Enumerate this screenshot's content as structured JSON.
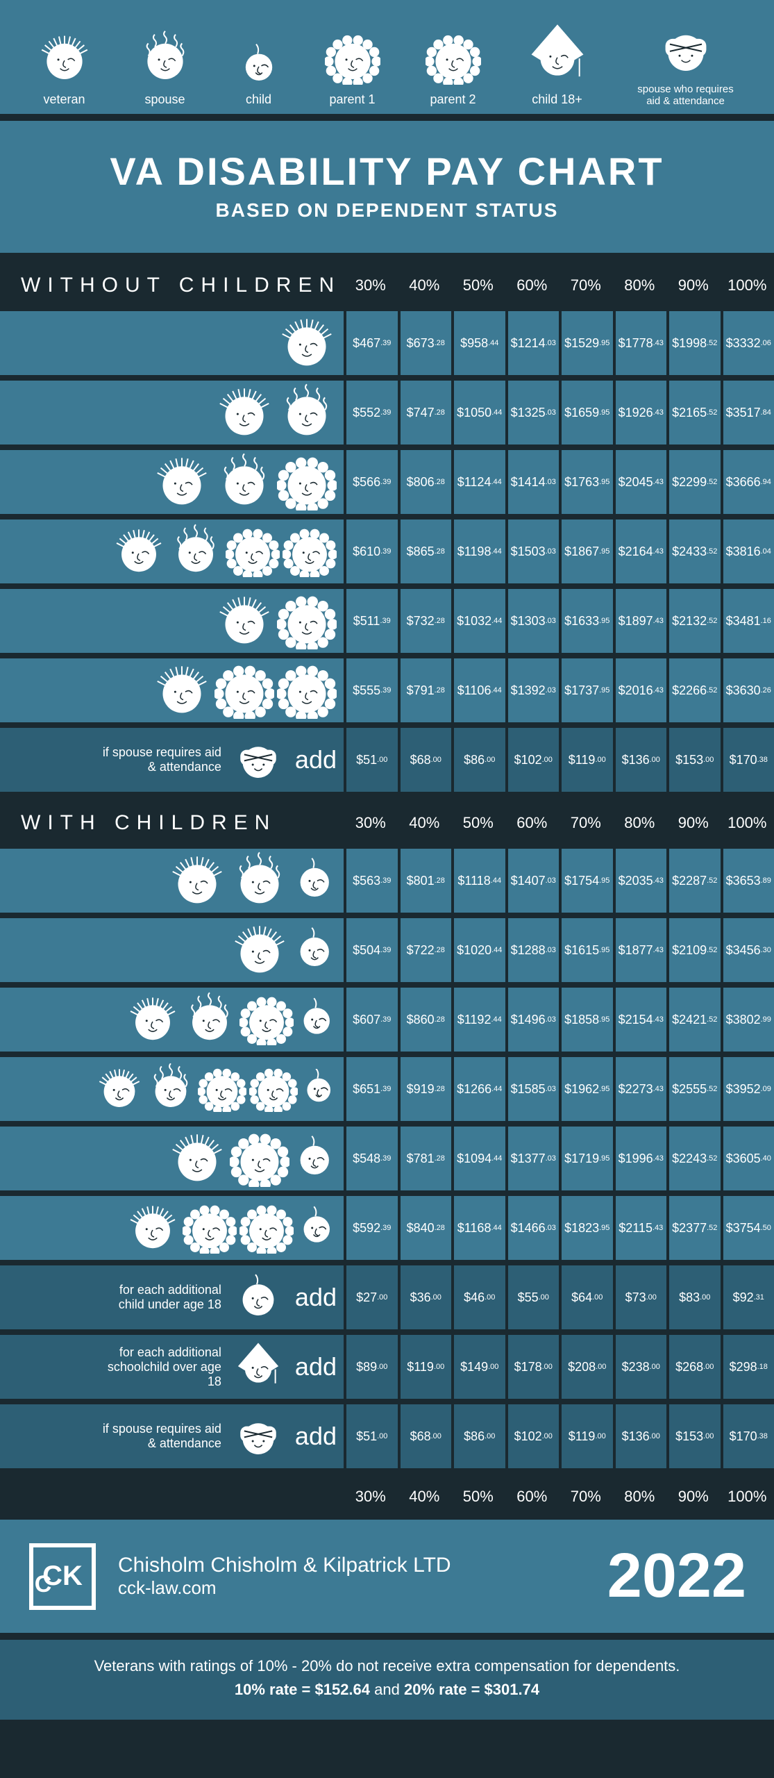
{
  "legend": [
    {
      "key": "veteran",
      "label": "veteran"
    },
    {
      "key": "spouse",
      "label": "spouse"
    },
    {
      "key": "child",
      "label": "child"
    },
    {
      "key": "parent1",
      "label": "parent 1"
    },
    {
      "key": "parent2",
      "label": "parent 2"
    },
    {
      "key": "child18",
      "label": "child 18+"
    },
    {
      "key": "spouse_aid",
      "label": "spouse who requires aid & attendance"
    }
  ],
  "title": "VA DISABILITY PAY CHART",
  "subtitle": "BASED ON DEPENDENT STATUS",
  "percent_headers": [
    "30%",
    "40%",
    "50%",
    "60%",
    "70%",
    "80%",
    "90%",
    "100%"
  ],
  "colors": {
    "page_bg": "#1a2930",
    "row_bg": "#3d7a94",
    "add_bg": "#2d5f75",
    "text": "#ffffff"
  },
  "sections": [
    {
      "id": "without",
      "label": "WITHOUT CHILDREN",
      "rows": [
        {
          "icons": [
            "veteran"
          ],
          "vals": [
            [
              "$467",
              ".39"
            ],
            [
              "$673",
              ".28"
            ],
            [
              "$958",
              ".44"
            ],
            [
              "$1214",
              ".03"
            ],
            [
              "$1529",
              ".95"
            ],
            [
              "$1778",
              ".43"
            ],
            [
              "$1998",
              ".52"
            ],
            [
              "$3332",
              ".06"
            ]
          ]
        },
        {
          "icons": [
            "veteran",
            "spouse"
          ],
          "vals": [
            [
              "$552",
              ".39"
            ],
            [
              "$747",
              ".28"
            ],
            [
              "$1050",
              ".44"
            ],
            [
              "$1325",
              ".03"
            ],
            [
              "$1659",
              ".95"
            ],
            [
              "$1926",
              ".43"
            ],
            [
              "$2165",
              ".52"
            ],
            [
              "$3517",
              ".84"
            ]
          ]
        },
        {
          "icons": [
            "veteran",
            "spouse",
            "parent1"
          ],
          "vals": [
            [
              "$566",
              ".39"
            ],
            [
              "$806",
              ".28"
            ],
            [
              "$1124",
              ".44"
            ],
            [
              "$1414",
              ".03"
            ],
            [
              "$1763",
              ".95"
            ],
            [
              "$2045",
              ".43"
            ],
            [
              "$2299",
              ".52"
            ],
            [
              "$3666",
              ".94"
            ]
          ]
        },
        {
          "icons": [
            "veteran",
            "spouse",
            "parent1",
            "parent2"
          ],
          "vals": [
            [
              "$610",
              ".39"
            ],
            [
              "$865",
              ".28"
            ],
            [
              "$1198",
              ".44"
            ],
            [
              "$1503",
              ".03"
            ],
            [
              "$1867",
              ".95"
            ],
            [
              "$2164",
              ".43"
            ],
            [
              "$2433",
              ".52"
            ],
            [
              "$3816",
              ".04"
            ]
          ]
        },
        {
          "icons": [
            "veteran",
            "parent1"
          ],
          "vals": [
            [
              "$511",
              ".39"
            ],
            [
              "$732",
              ".28"
            ],
            [
              "$1032",
              ".44"
            ],
            [
              "$1303",
              ".03"
            ],
            [
              "$1633",
              ".95"
            ],
            [
              "$1897",
              ".43"
            ],
            [
              "$2132",
              ".52"
            ],
            [
              "$3481",
              ".16"
            ]
          ]
        },
        {
          "icons": [
            "veteran",
            "parent1",
            "parent2"
          ],
          "vals": [
            [
              "$555",
              ".39"
            ],
            [
              "$791",
              ".28"
            ],
            [
              "$1106",
              ".44"
            ],
            [
              "$1392",
              ".03"
            ],
            [
              "$1737",
              ".95"
            ],
            [
              "$2016",
              ".43"
            ],
            [
              "$2266",
              ".52"
            ],
            [
              "$3630",
              ".26"
            ]
          ]
        }
      ],
      "add_rows": [
        {
          "label": "if spouse requires aid & attendance",
          "icon": "spouse_aid",
          "word": "add",
          "vals": [
            [
              "$51",
              ".00"
            ],
            [
              "$68",
              ".00"
            ],
            [
              "$86",
              ".00"
            ],
            [
              "$102",
              ".00"
            ],
            [
              "$119",
              ".00"
            ],
            [
              "$136",
              ".00"
            ],
            [
              "$153",
              ".00"
            ],
            [
              "$170",
              ".38"
            ]
          ]
        }
      ]
    },
    {
      "id": "with",
      "label": "WITH CHILDREN",
      "rows": [
        {
          "icons": [
            "veteran",
            "spouse",
            "child"
          ],
          "vals": [
            [
              "$563",
              ".39"
            ],
            [
              "$801",
              ".28"
            ],
            [
              "$1118",
              ".44"
            ],
            [
              "$1407",
              ".03"
            ],
            [
              "$1754",
              ".95"
            ],
            [
              "$2035",
              ".43"
            ],
            [
              "$2287",
              ".52"
            ],
            [
              "$3653",
              ".89"
            ]
          ]
        },
        {
          "icons": [
            "veteran",
            "child"
          ],
          "vals": [
            [
              "$504",
              ".39"
            ],
            [
              "$722",
              ".28"
            ],
            [
              "$1020",
              ".44"
            ],
            [
              "$1288",
              ".03"
            ],
            [
              "$1615",
              ".95"
            ],
            [
              "$1877",
              ".43"
            ],
            [
              "$2109",
              ".52"
            ],
            [
              "$3456",
              ".30"
            ]
          ]
        },
        {
          "icons": [
            "veteran",
            "spouse",
            "parent1",
            "child"
          ],
          "vals": [
            [
              "$607",
              ".39"
            ],
            [
              "$860",
              ".28"
            ],
            [
              "$1192",
              ".44"
            ],
            [
              "$1496",
              ".03"
            ],
            [
              "$1858",
              ".95"
            ],
            [
              "$2154",
              ".43"
            ],
            [
              "$2421",
              ".52"
            ],
            [
              "$3802",
              ".99"
            ]
          ]
        },
        {
          "icons": [
            "veteran",
            "spouse",
            "parent1",
            "parent2",
            "child"
          ],
          "vals": [
            [
              "$651",
              ".39"
            ],
            [
              "$919",
              ".28"
            ],
            [
              "$1266",
              ".44"
            ],
            [
              "$1585",
              ".03"
            ],
            [
              "$1962",
              ".95"
            ],
            [
              "$2273",
              ".43"
            ],
            [
              "$2555",
              ".52"
            ],
            [
              "$3952",
              ".09"
            ]
          ]
        },
        {
          "icons": [
            "veteran",
            "parent1",
            "child"
          ],
          "vals": [
            [
              "$548",
              ".39"
            ],
            [
              "$781",
              ".28"
            ],
            [
              "$1094",
              ".44"
            ],
            [
              "$1377",
              ".03"
            ],
            [
              "$1719",
              ".95"
            ],
            [
              "$1996",
              ".43"
            ],
            [
              "$2243",
              ".52"
            ],
            [
              "$3605",
              ".40"
            ]
          ]
        },
        {
          "icons": [
            "veteran",
            "parent1",
            "parent2",
            "child"
          ],
          "vals": [
            [
              "$592",
              ".39"
            ],
            [
              "$840",
              ".28"
            ],
            [
              "$1168",
              ".44"
            ],
            [
              "$1466",
              ".03"
            ],
            [
              "$1823",
              ".95"
            ],
            [
              "$2115",
              ".43"
            ],
            [
              "$2377",
              ".52"
            ],
            [
              "$3754",
              ".50"
            ]
          ]
        }
      ],
      "add_rows": [
        {
          "label": "for each additional child under age 18",
          "icon": "child",
          "word": "add",
          "vals": [
            [
              "$27",
              ".00"
            ],
            [
              "$36",
              ".00"
            ],
            [
              "$46",
              ".00"
            ],
            [
              "$55",
              ".00"
            ],
            [
              "$64",
              ".00"
            ],
            [
              "$73",
              ".00"
            ],
            [
              "$83",
              ".00"
            ],
            [
              "$92",
              ".31"
            ]
          ]
        },
        {
          "label": "for each additional schoolchild over age 18",
          "icon": "child18",
          "word": "add",
          "vals": [
            [
              "$89",
              ".00"
            ],
            [
              "$119",
              ".00"
            ],
            [
              "$149",
              ".00"
            ],
            [
              "$178",
              ".00"
            ],
            [
              "$208",
              ".00"
            ],
            [
              "$238",
              ".00"
            ],
            [
              "$268",
              ".00"
            ],
            [
              "$298",
              ".18"
            ]
          ]
        },
        {
          "label": "if spouse requires aid & attendance",
          "icon": "spouse_aid",
          "word": "add",
          "vals": [
            [
              "$51",
              ".00"
            ],
            [
              "$68",
              ".00"
            ],
            [
              "$86",
              ".00"
            ],
            [
              "$102",
              ".00"
            ],
            [
              "$119",
              ".00"
            ],
            [
              "$136",
              ".00"
            ],
            [
              "$153",
              ".00"
            ],
            [
              "$170",
              ".38"
            ]
          ]
        }
      ]
    }
  ],
  "company": {
    "name": "Chisholm Chisholm & Kilpatrick LTD",
    "url": "cck-law.com",
    "year": "2022"
  },
  "footnote": {
    "text": "Veterans with ratings of 10% - 20% do not receive extra compensation for dependents.",
    "rate10_label": "10% rate = ",
    "rate10_val": "$152.64",
    "and": " and ",
    "rate20_label": "20% rate = ",
    "rate20_val": "$301.74"
  }
}
